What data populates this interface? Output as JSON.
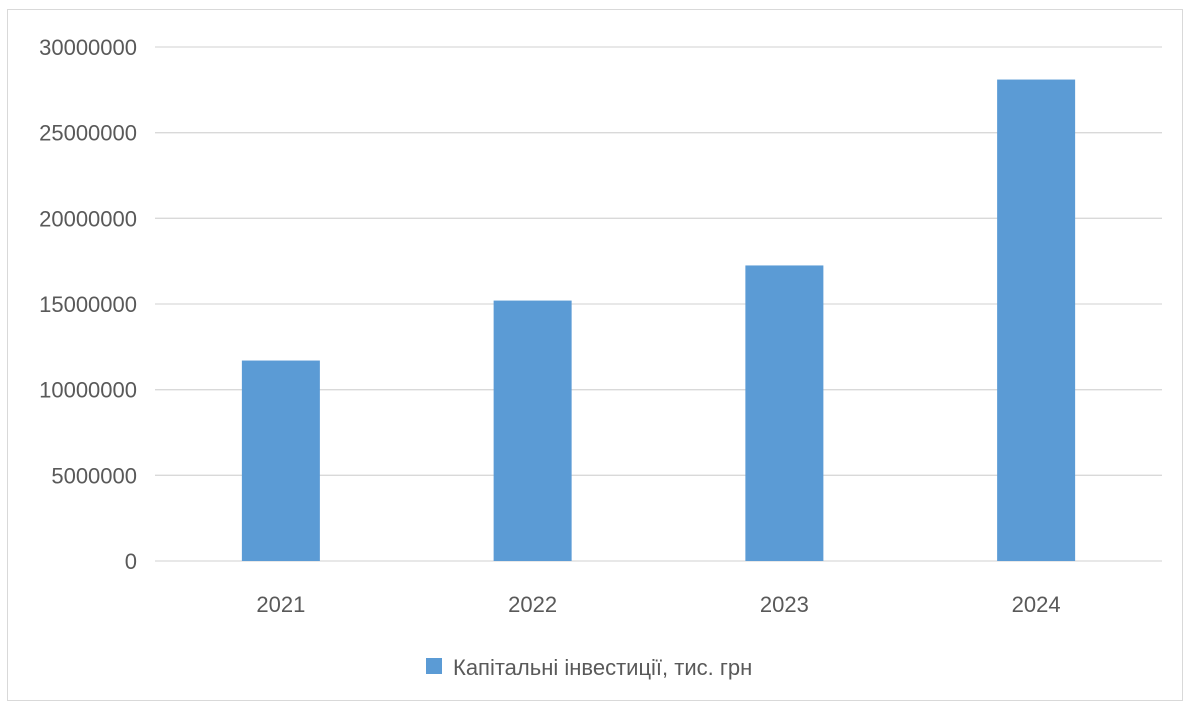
{
  "chart_data": {
    "type": "bar",
    "categories": [
      "2021",
      "2022",
      "2023",
      "2024"
    ],
    "series": [
      {
        "name": "Капітальні інвестиції, тис. грн",
        "values": [
          11700000,
          15200000,
          17250000,
          28100000
        ],
        "color": "#5b9bd5"
      }
    ],
    "ylim": [
      0,
      30000000
    ],
    "yticks": [
      0,
      5000000,
      10000000,
      15000000,
      20000000,
      25000000,
      30000000
    ],
    "ytick_labels": [
      "0",
      "5000000",
      "10000000",
      "15000000",
      "20000000",
      "25000000",
      "30000000"
    ],
    "grid": true,
    "gridline_color": "#d9d9d9",
    "legend_position": "bottom"
  }
}
